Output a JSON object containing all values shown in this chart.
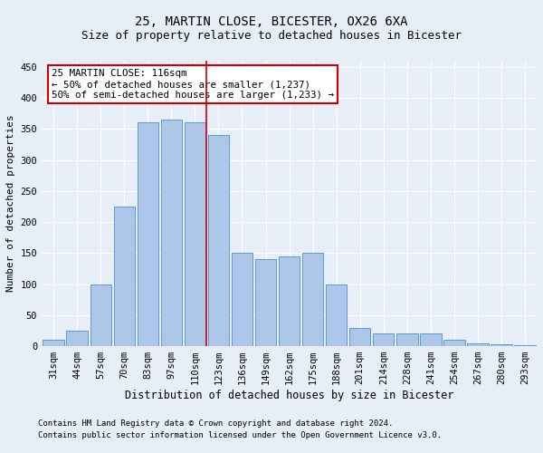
{
  "title1": "25, MARTIN CLOSE, BICESTER, OX26 6XA",
  "title2": "Size of property relative to detached houses in Bicester",
  "xlabel": "Distribution of detached houses by size in Bicester",
  "ylabel": "Number of detached properties",
  "categories": [
    "31sqm",
    "44sqm",
    "57sqm",
    "70sqm",
    "83sqm",
    "97sqm",
    "110sqm",
    "123sqm",
    "136sqm",
    "149sqm",
    "162sqm",
    "175sqm",
    "188sqm",
    "201sqm",
    "214sqm",
    "228sqm",
    "241sqm",
    "254sqm",
    "267sqm",
    "280sqm",
    "293sqm"
  ],
  "values": [
    10,
    25,
    100,
    225,
    360,
    365,
    360,
    340,
    150,
    140,
    145,
    150,
    100,
    30,
    20,
    20,
    20,
    10,
    5,
    3,
    2
  ],
  "bar_color": "#aec6e8",
  "bar_edge_color": "#5b9bd5",
  "vline_color": "#cc0000",
  "annotation_text": "25 MARTIN CLOSE: 116sqm\n← 50% of detached houses are smaller (1,237)\n50% of semi-detached houses are larger (1,233) →",
  "annotation_box_color": "#ffffff",
  "annotation_box_edge": "#cc0000",
  "footer1": "Contains HM Land Registry data © Crown copyright and database right 2024.",
  "footer2": "Contains public sector information licensed under the Open Government Licence v3.0.",
  "ylim": [
    0,
    460
  ],
  "yticks": [
    0,
    50,
    100,
    150,
    200,
    250,
    300,
    350,
    400,
    450
  ],
  "background_color": "#e8eef8",
  "grid_color": "#ffffff",
  "title1_fontsize": 10,
  "title2_fontsize": 9,
  "xlabel_fontsize": 8.5,
  "ylabel_fontsize": 8,
  "tick_fontsize": 7.5,
  "annotation_fontsize": 7.8,
  "footer_fontsize": 6.5
}
